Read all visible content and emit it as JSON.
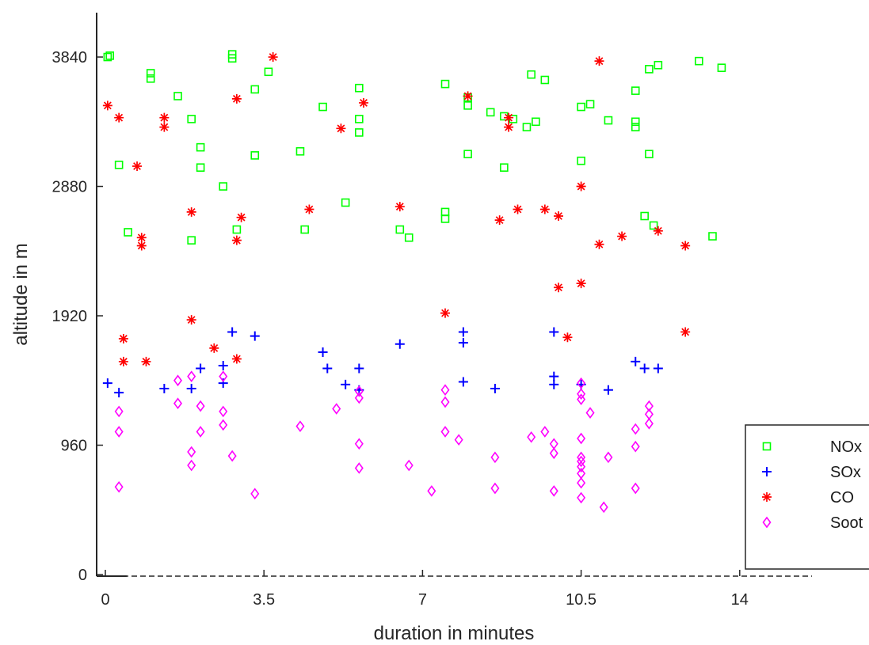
{
  "chart_data": {
    "type": "scatter",
    "title": "",
    "xlabel": "duration in minutes",
    "ylabel": "altitude in m",
    "xlim": [
      -0.2,
      17.2
    ],
    "ylim": [
      -30,
      4200
    ],
    "x_ticks": [
      0,
      3.5,
      7,
      10.5,
      14
    ],
    "x_tick_labels": [
      "0",
      "3.5",
      "7",
      "10.5",
      "14"
    ],
    "y_ticks": [
      0,
      960,
      1920,
      2880,
      3840
    ],
    "y_tick_labels": [
      "0",
      "960",
      "1920",
      "2880",
      "3840"
    ],
    "grid": false,
    "legend_position": "bottom-right",
    "series": [
      {
        "name": "NOx",
        "marker": "square",
        "color": "#00ff00",
        "points": [
          [
            0.05,
            3840
          ],
          [
            0.1,
            3850
          ],
          [
            1,
            3720
          ],
          [
            1,
            3680
          ],
          [
            1.6,
            3550
          ],
          [
            1.9,
            3380
          ],
          [
            2.1,
            3170
          ],
          [
            2.1,
            3020
          ],
          [
            0.3,
            3040
          ],
          [
            2.6,
            2880
          ],
          [
            2.8,
            3830
          ],
          [
            2.8,
            3860
          ],
          [
            3.3,
            3600
          ],
          [
            3.3,
            3110
          ],
          [
            3.6,
            3730
          ],
          [
            2.9,
            2560
          ],
          [
            1.9,
            2480
          ],
          [
            0.5,
            2540
          ],
          [
            4.3,
            3140
          ],
          [
            4.4,
            2560
          ],
          [
            4.8,
            3470
          ],
          [
            5.3,
            2760
          ],
          [
            5.6,
            3610
          ],
          [
            5.6,
            3380
          ],
          [
            5.6,
            3280
          ],
          [
            6.5,
            2560
          ],
          [
            6.7,
            2500
          ],
          [
            7.5,
            3640
          ],
          [
            7.5,
            2640
          ],
          [
            7.5,
            2690
          ],
          [
            8.0,
            3540
          ],
          [
            8.0,
            3480
          ],
          [
            8.0,
            3120
          ],
          [
            8.5,
            3430
          ],
          [
            8.8,
            3400
          ],
          [
            8.8,
            3020
          ],
          [
            9.0,
            3380
          ],
          [
            9.3,
            3320
          ],
          [
            9.4,
            3710
          ],
          [
            9.7,
            3670
          ],
          [
            9.5,
            3360
          ],
          [
            10.5,
            3470
          ],
          [
            10.7,
            3490
          ],
          [
            10.5,
            3070
          ],
          [
            11.1,
            3370
          ],
          [
            11.7,
            3590
          ],
          [
            11.7,
            3360
          ],
          [
            11.7,
            3320
          ],
          [
            12.0,
            3750
          ],
          [
            12.2,
            3780
          ],
          [
            11.9,
            2660
          ],
          [
            12.1,
            2590
          ],
          [
            12.0,
            3120
          ],
          [
            13.1,
            3810
          ],
          [
            13.4,
            2510
          ],
          [
            13.6,
            3760
          ]
        ]
      },
      {
        "name": "SOx",
        "marker": "plus",
        "color": "#0000ff",
        "points": [
          [
            0.05,
            1420
          ],
          [
            0.3,
            1350
          ],
          [
            1.3,
            1380
          ],
          [
            1.9,
            1380
          ],
          [
            2.1,
            1530
          ],
          [
            2.6,
            1550
          ],
          [
            2.6,
            1420
          ],
          [
            2.8,
            1800
          ],
          [
            3.3,
            1770
          ],
          [
            4.8,
            1650
          ],
          [
            4.9,
            1530
          ],
          [
            5.3,
            1410
          ],
          [
            5.6,
            1370
          ],
          [
            5.6,
            1530
          ],
          [
            6.5,
            1710
          ],
          [
            7.9,
            1800
          ],
          [
            7.9,
            1720
          ],
          [
            7.9,
            1430
          ],
          [
            8.6,
            1380
          ],
          [
            9.9,
            1800
          ],
          [
            9.9,
            1470
          ],
          [
            9.9,
            1410
          ],
          [
            10.5,
            1410
          ],
          [
            11.1,
            1370
          ],
          [
            11.7,
            1580
          ],
          [
            11.9,
            1530
          ],
          [
            12.2,
            1530
          ]
        ]
      },
      {
        "name": "CO",
        "marker": "asterisk",
        "color": "#ff0000",
        "points": [
          [
            0.05,
            3480
          ],
          [
            0.3,
            3390
          ],
          [
            0.7,
            3030
          ],
          [
            1.3,
            3390
          ],
          [
            1.3,
            3320
          ],
          [
            0.8,
            2500
          ],
          [
            0.8,
            2440
          ],
          [
            0.4,
            1750
          ],
          [
            0.4,
            1580
          ],
          [
            0.9,
            1580
          ],
          [
            1.9,
            2690
          ],
          [
            1.9,
            1890
          ],
          [
            2.4,
            1680
          ],
          [
            2.9,
            3530
          ],
          [
            2.9,
            2480
          ],
          [
            2.9,
            1600
          ],
          [
            3.0,
            2650
          ],
          [
            3.7,
            3840
          ],
          [
            4.5,
            2710
          ],
          [
            5.2,
            3310
          ],
          [
            5.7,
            3500
          ],
          [
            6.5,
            2730
          ],
          [
            7.5,
            1940
          ],
          [
            8.0,
            3550
          ],
          [
            8.7,
            2630
          ],
          [
            8.9,
            3390
          ],
          [
            8.9,
            3320
          ],
          [
            9.1,
            2710
          ],
          [
            9.7,
            2710
          ],
          [
            10.0,
            2660
          ],
          [
            10.0,
            2130
          ],
          [
            10.2,
            1760
          ],
          [
            10.5,
            2880
          ],
          [
            10.5,
            2160
          ],
          [
            10.9,
            3810
          ],
          [
            10.9,
            2450
          ],
          [
            11.4,
            2510
          ],
          [
            12.2,
            2550
          ],
          [
            12.8,
            2440
          ],
          [
            12.8,
            1800
          ]
        ]
      },
      {
        "name": "Soot",
        "marker": "diamond",
        "color": "#ff00ff",
        "points": [
          [
            0.3,
            1210
          ],
          [
            0.3,
            1060
          ],
          [
            0.3,
            650
          ],
          [
            1.6,
            1440
          ],
          [
            1.6,
            1270
          ],
          [
            1.9,
            1470
          ],
          [
            1.9,
            910
          ],
          [
            1.9,
            810
          ],
          [
            2.1,
            1250
          ],
          [
            2.1,
            1060
          ],
          [
            2.6,
            1470
          ],
          [
            2.6,
            1210
          ],
          [
            2.6,
            1110
          ],
          [
            2.8,
            880
          ],
          [
            3.3,
            600
          ],
          [
            4.3,
            1100
          ],
          [
            5.1,
            1230
          ],
          [
            5.6,
            1360
          ],
          [
            5.6,
            1310
          ],
          [
            5.6,
            970
          ],
          [
            5.6,
            790
          ],
          [
            6.7,
            810
          ],
          [
            7.2,
            620
          ],
          [
            7.5,
            1370
          ],
          [
            7.5,
            1280
          ],
          [
            7.5,
            1060
          ],
          [
            7.8,
            1000
          ],
          [
            8.6,
            870
          ],
          [
            8.6,
            640
          ],
          [
            9.4,
            1020
          ],
          [
            9.7,
            1060
          ],
          [
            9.9,
            970
          ],
          [
            9.9,
            900
          ],
          [
            9.9,
            620
          ],
          [
            10.5,
            1420
          ],
          [
            10.5,
            1340
          ],
          [
            10.5,
            1300
          ],
          [
            10.5,
            1010
          ],
          [
            10.5,
            870
          ],
          [
            10.5,
            840
          ],
          [
            10.5,
            800
          ],
          [
            10.5,
            750
          ],
          [
            10.5,
            680
          ],
          [
            10.5,
            570
          ],
          [
            10.7,
            1200
          ],
          [
            11.0,
            500
          ],
          [
            11.1,
            870
          ],
          [
            11.7,
            1080
          ],
          [
            11.7,
            950
          ],
          [
            11.7,
            640
          ],
          [
            12.0,
            1250
          ],
          [
            12.0,
            1190
          ],
          [
            12.0,
            1120
          ]
        ]
      }
    ]
  }
}
